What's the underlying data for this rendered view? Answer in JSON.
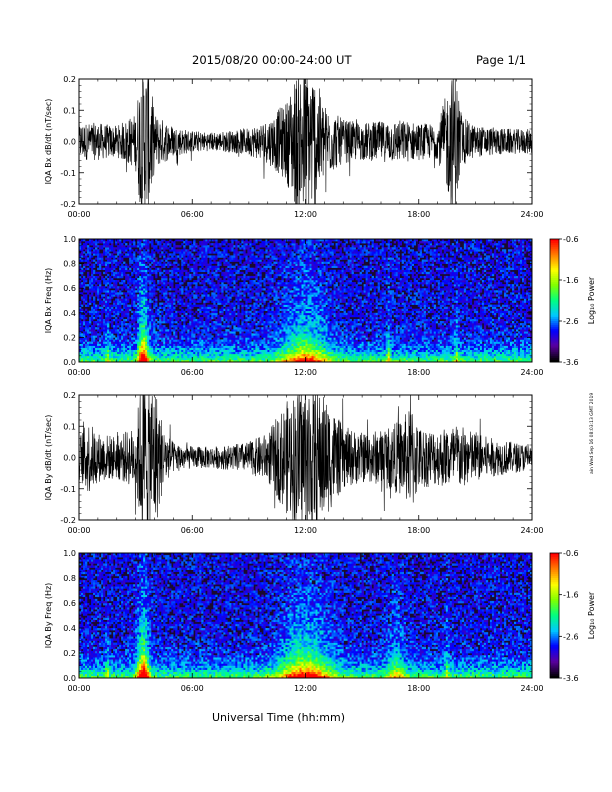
{
  "header": {
    "title": "2015/08/20  00:00-24:00 UT",
    "page": "Page 1/1"
  },
  "footer": {
    "xlabel": "Universal Time (hh:mm)",
    "side_note": "ain Wed Sep 16 08:03:13 GMT 2019"
  },
  "colors": {
    "trace": "#000000",
    "spec_bg": "#1a0a2e",
    "colorbar": [
      "#000000",
      "#5a00a0",
      "#0000ff",
      "#00c8ff",
      "#00ff80",
      "#80ff00",
      "#ffff00",
      "#ff8000",
      "#ff0000"
    ]
  },
  "chart_data": [
    {
      "type": "line",
      "ylabel": "IQA Bx dB/dt (nT/sec)",
      "xlim": [
        0,
        24
      ],
      "ylim": [
        -0.2,
        0.2
      ],
      "x_ticks": [
        "00:00",
        "06:00",
        "12:00",
        "18:00",
        "24:00"
      ],
      "y_ticks": [
        "-0.2",
        "-0.1",
        "0.0",
        "0.1",
        "0.2"
      ],
      "y_tick_values": [
        -0.2,
        -0.1,
        0.0,
        0.1,
        0.2
      ],
      "envelope": {
        "x_hours": [
          0,
          1,
          2,
          3,
          3.3,
          3.7,
          4,
          5,
          6,
          7,
          8,
          9,
          10,
          11,
          11.5,
          12,
          12.5,
          13,
          14,
          15,
          16,
          17,
          18,
          19,
          19.9,
          20.3,
          21,
          22,
          23,
          24
        ],
        "amplitude": [
          0.06,
          0.06,
          0.05,
          0.09,
          0.25,
          0.25,
          0.09,
          0.05,
          0.035,
          0.03,
          0.035,
          0.045,
          0.07,
          0.13,
          0.22,
          0.25,
          0.22,
          0.12,
          0.07,
          0.06,
          0.065,
          0.07,
          0.06,
          0.055,
          0.25,
          0.08,
          0.05,
          0.045,
          0.04,
          0.04
        ]
      }
    },
    {
      "type": "heatmap",
      "ylabel": "IQA Bx Freq (Hz)",
      "xlim": [
        0,
        24
      ],
      "ylim": [
        0,
        1.0
      ],
      "x_ticks": [
        "00:00",
        "06:00",
        "12:00",
        "18:00",
        "24:00"
      ],
      "y_ticks": [
        "0.0",
        "0.2",
        "0.4",
        "0.6",
        "0.8",
        "1.0"
      ],
      "y_tick_values": [
        0,
        0.2,
        0.4,
        0.6,
        0.8,
        1.0
      ],
      "colorbar": {
        "label": "Log₁₀ Power",
        "min": -3.6,
        "max": -0.6,
        "ticks": [
          "-0.6",
          "-1.6",
          "-2.6",
          "-3.6"
        ],
        "tick_values": [
          -0.6,
          -1.6,
          -2.6,
          -3.6
        ]
      },
      "bursts": [
        {
          "t": 3.4,
          "width": 0.25,
          "strength": 1.0
        },
        {
          "t": 12.0,
          "width": 1.2,
          "strength": 0.6
        },
        {
          "t": 1.5,
          "width": 0.1,
          "strength": 0.3
        },
        {
          "t": 16.4,
          "width": 0.1,
          "strength": 0.35
        },
        {
          "t": 20.0,
          "width": 0.1,
          "strength": 0.3
        }
      ]
    },
    {
      "type": "line",
      "ylabel": "IQA By dB/dt (nT/sec)",
      "xlim": [
        0,
        24
      ],
      "ylim": [
        -0.2,
        0.2
      ],
      "x_ticks": [
        "00:00",
        "06:00",
        "12:00",
        "18:00",
        "24:00"
      ],
      "y_ticks": [
        "-0.2",
        "-0.1",
        "0.0",
        "0.1",
        "0.2"
      ],
      "y_tick_values": [
        -0.2,
        -0.1,
        0.0,
        0.1,
        0.2
      ],
      "envelope": {
        "x_hours": [
          0,
          0.5,
          1,
          2,
          3,
          3.3,
          4,
          4.5,
          5,
          6,
          7,
          8,
          9,
          10,
          11,
          12,
          13,
          14,
          15,
          16,
          17,
          17.7,
          18,
          19,
          20,
          21,
          22,
          23,
          24
        ],
        "amplitude": [
          0.07,
          0.12,
          0.08,
          0.07,
          0.1,
          0.25,
          0.25,
          0.09,
          0.05,
          0.035,
          0.035,
          0.04,
          0.05,
          0.08,
          0.18,
          0.25,
          0.2,
          0.1,
          0.08,
          0.09,
          0.12,
          0.17,
          0.1,
          0.09,
          0.11,
          0.08,
          0.06,
          0.05,
          0.04
        ]
      }
    },
    {
      "type": "heatmap",
      "ylabel": "IQA By Freq (Hz)",
      "xlim": [
        0,
        24
      ],
      "ylim": [
        0,
        1.0
      ],
      "x_ticks": [
        "00:00",
        "06:00",
        "12:00",
        "18:00",
        "24:00"
      ],
      "y_ticks": [
        "0.0",
        "0.2",
        "0.4",
        "0.6",
        "0.8",
        "1.0"
      ],
      "y_tick_values": [
        0,
        0.2,
        0.4,
        0.6,
        0.8,
        1.0
      ],
      "colorbar": {
        "label": "Log₁₀ Power",
        "min": -3.6,
        "max": -0.6,
        "ticks": [
          "-0.6",
          "-1.6",
          "-2.6",
          "-3.6"
        ],
        "tick_values": [
          -0.6,
          -1.6,
          -2.6,
          -3.6
        ]
      },
      "bursts": [
        {
          "t": 3.4,
          "width": 0.3,
          "strength": 1.0
        },
        {
          "t": 12.0,
          "width": 1.3,
          "strength": 0.7
        },
        {
          "t": 1.5,
          "width": 0.1,
          "strength": 0.3
        },
        {
          "t": 16.8,
          "width": 0.5,
          "strength": 0.35
        },
        {
          "t": 19.5,
          "width": 0.1,
          "strength": 0.3
        }
      ]
    }
  ]
}
